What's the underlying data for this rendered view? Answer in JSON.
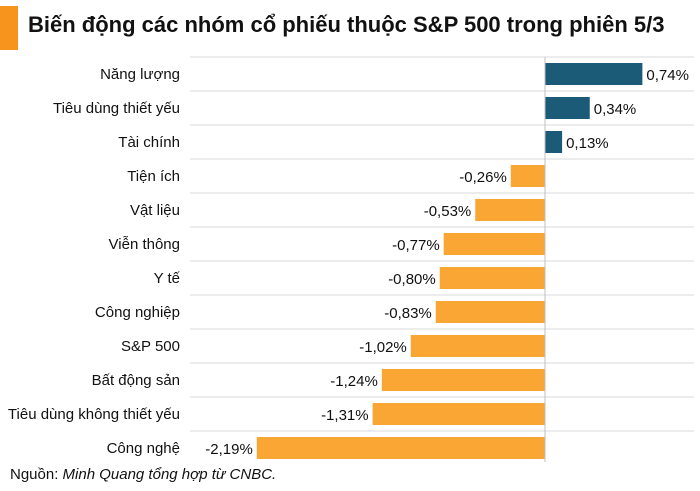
{
  "header": {
    "title": "Biến động các nhóm cổ phiếu thuộc S&P 500 trong phiên 5/3"
  },
  "footer": {
    "source_label": "Nguồn:",
    "source_text": "Minh Quang tổng hợp từ CNBC."
  },
  "colors": {
    "accent": "#F7941D",
    "positive": "#1B5B78",
    "negative": "#F9A634",
    "grid": "#d9d9d9"
  },
  "chart_data": {
    "type": "bar",
    "orientation": "horizontal",
    "categories": [
      "Năng lượng",
      "Tiêu dùng thiết yếu",
      "Tài chính",
      "Tiện ích",
      "Vật liệu",
      "Viễn thông",
      "Y tế",
      "Công nghiệp",
      "S&P 500",
      "Bất động sản",
      "Tiêu dùng không thiết yếu",
      "Công nghệ"
    ],
    "values": [
      0.74,
      0.34,
      0.13,
      -0.26,
      -0.53,
      -0.77,
      -0.8,
      -0.83,
      -1.02,
      -1.24,
      -1.31,
      -2.19
    ],
    "value_labels": [
      "0,74%",
      "0,34%",
      "0,13%",
      "-0,26%",
      "-0,53%",
      "-0,77%",
      "-0,80%",
      "-0,83%",
      "-1,02%",
      "-1,24%",
      "-1,31%",
      "-2,19%"
    ],
    "unit": "%",
    "xlim": [
      -2.19,
      0.74
    ],
    "grid": true,
    "legend": "none"
  }
}
